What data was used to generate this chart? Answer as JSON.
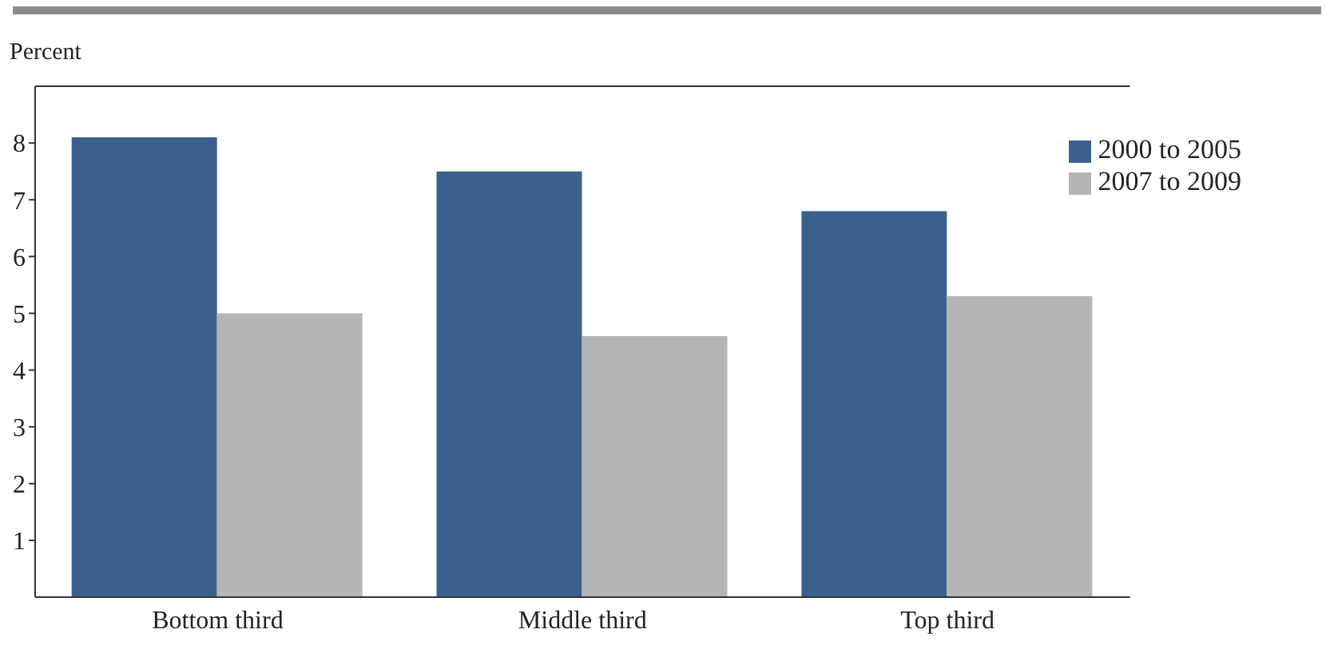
{
  "chart_data": {
    "type": "bar",
    "ylabel": "Percent",
    "categories": [
      "Bottom third",
      "Middle third",
      "Top third"
    ],
    "series": [
      {
        "name": "2000 to 2005",
        "color": "#3a618e",
        "values": [
          8.1,
          7.5,
          6.8
        ]
      },
      {
        "name": "2007 to 2009",
        "color": "#b4b5b4",
        "values": [
          5.0,
          4.6,
          5.3
        ]
      }
    ],
    "ylim": [
      0,
      9
    ],
    "yticks": [
      1,
      2,
      3,
      4,
      5,
      6,
      7,
      8
    ],
    "grid": false,
    "legend": "top right"
  }
}
